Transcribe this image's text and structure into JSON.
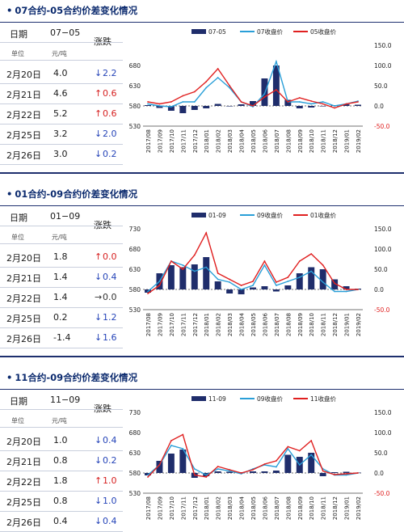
{
  "colors": {
    "title": "#0b2a6e",
    "spread_bar": "#1f2d6b",
    "near_line": "#2a9fd8",
    "far_line": "#e02020",
    "up": "#d62020",
    "down": "#2544b8"
  },
  "panels": [
    {
      "title": "07合约-05合约价差变化情况",
      "table": {
        "hdr_date": "日期",
        "hdr_spread": "07−05",
        "hdr_change": "涨跌",
        "unit_label": "单位",
        "unit_value": "元/吨",
        "rows": [
          {
            "date": "2月20日",
            "value": "4.0",
            "arrow": "↓",
            "change": "2.2",
            "dir": "down"
          },
          {
            "date": "2月21日",
            "value": "4.6",
            "arrow": "↑",
            "change": "0.6",
            "dir": "up"
          },
          {
            "date": "2月22日",
            "value": "5.2",
            "arrow": "↑",
            "change": "0.6",
            "dir": "up"
          },
          {
            "date": "2月25日",
            "value": "3.2",
            "arrow": "↓",
            "change": "2.0",
            "dir": "down"
          },
          {
            "date": "2月26日",
            "value": "3.0",
            "arrow": "↓",
            "change": "0.2",
            "dir": "down"
          }
        ]
      },
      "chart_data": {
        "type": "bar+line",
        "legend": [
          "07-05",
          "07收盘价",
          "05收盘价"
        ],
        "left_ticks": [
          "680",
          "630",
          "580",
          "530"
        ],
        "right_ticks": [
          "150.0",
          "100.0",
          "50.0",
          "0.0",
          "-50.0"
        ],
        "ylim_left": [
          530,
          730
        ],
        "ylim_right": [
          -50,
          150
        ],
        "x": [
          "2017/08",
          "2017/09",
          "2017/10",
          "2017/11",
          "2017/12",
          "2018/01",
          "2018/02",
          "2018/03",
          "2018/04",
          "2018/05",
          "2018/06",
          "2018/07",
          "2018/08",
          "2018/09",
          "2018/10",
          "2018/11",
          "2018/12",
          "2019/01",
          "2019/02"
        ],
        "series": [
          {
            "name": "07-05",
            "kind": "bar",
            "values": [
              2,
              -5,
              -12,
              -18,
              -10,
              -6,
              5,
              0,
              4,
              12,
              68,
              100,
              15,
              -6,
              -4,
              0,
              2,
              4,
              3
            ]
          },
          {
            "name": "07收盘价",
            "kind": "line",
            "values": [
              585,
              580,
              578,
              590,
              590,
              625,
              650,
              625,
              590,
              578,
              610,
              690,
              590,
              590,
              585,
              590,
              580,
              585,
              592
            ]
          },
          {
            "name": "05收盘价",
            "kind": "line",
            "values": [
              590,
              585,
              590,
              605,
              615,
              640,
              672,
              630,
              590,
              580,
              602,
              620,
              590,
              600,
              592,
              585,
              575,
              585,
              590
            ]
          }
        ]
      }
    },
    {
      "title": "01合约-09合约价差变化情况",
      "table": {
        "hdr_date": "日期",
        "hdr_spread": "01−09",
        "hdr_change": "涨跌",
        "unit_label": "单位",
        "unit_value": "元/吨",
        "rows": [
          {
            "date": "2月20日",
            "value": "1.8",
            "arrow": "↑",
            "change": "0.0",
            "dir": "up"
          },
          {
            "date": "2月21日",
            "value": "1.4",
            "arrow": "↓",
            "change": "0.4",
            "dir": "down"
          },
          {
            "date": "2月22日",
            "value": "1.4",
            "arrow": "→",
            "change": "0.0",
            "dir": "flat"
          },
          {
            "date": "2月25日",
            "value": "0.2",
            "arrow": "↓",
            "change": "1.2",
            "dir": "down"
          },
          {
            "date": "2月26日",
            "value": "-1.4",
            "arrow": "↓",
            "change": "1.6",
            "dir": "down"
          }
        ]
      },
      "chart_data": {
        "type": "bar+line",
        "legend": [
          "01-09",
          "09收盘价",
          "01收盘价"
        ],
        "left_ticks": [
          "730",
          "680",
          "630",
          "580",
          "530"
        ],
        "right_ticks": [
          "150.0",
          "100.0",
          "50.0",
          "0.0",
          "-50.0"
        ],
        "ylim_left": [
          530,
          730
        ],
        "ylim_right": [
          -50,
          150
        ],
        "x": [
          "2017/08",
          "2017/09",
          "2017/10",
          "2017/11",
          "2017/12",
          "2018/01",
          "2018/02",
          "2018/03",
          "2018/04",
          "2018/05",
          "2018/06",
          "2018/07",
          "2018/08",
          "2018/09",
          "2018/10",
          "2018/11",
          "2018/12",
          "2019/01",
          "2019/02"
        ],
        "series": [
          {
            "name": "01-09",
            "kind": "bar",
            "values": [
              -8,
              40,
              60,
              55,
              62,
              80,
              20,
              -10,
              -12,
              5,
              8,
              -5,
              10,
              40,
              55,
              50,
              25,
              8,
              2
            ]
          },
          {
            "name": "09收盘价",
            "kind": "line",
            "values": [
              575,
              600,
              650,
              640,
              625,
              635,
              605,
              598,
              580,
              590,
              640,
              590,
              600,
              610,
              625,
              598,
              575,
              575,
              580
            ]
          },
          {
            "name": "01收盘价",
            "kind": "line",
            "values": [
              570,
              590,
              650,
              630,
              665,
              720,
              620,
              605,
              590,
              600,
              650,
              598,
              610,
              650,
              668,
              640,
              595,
              580,
              580
            ]
          }
        ]
      }
    },
    {
      "title": "11合约-09合约价差变化情况",
      "table": {
        "hdr_date": "日期",
        "hdr_spread": "11−09",
        "hdr_change": "涨跌",
        "unit_label": "单位",
        "unit_value": "元/吨",
        "rows": [
          {
            "date": "2月20日",
            "value": "1.0",
            "arrow": "↓",
            "change": "0.4",
            "dir": "down"
          },
          {
            "date": "2月21日",
            "value": "0.8",
            "arrow": "↓",
            "change": "0.2",
            "dir": "down"
          },
          {
            "date": "2月22日",
            "value": "1.8",
            "arrow": "↑",
            "change": "1.0",
            "dir": "up"
          },
          {
            "date": "2月25日",
            "value": "0.8",
            "arrow": "↓",
            "change": "1.0",
            "dir": "down"
          },
          {
            "date": "2月26日",
            "value": "0.4",
            "arrow": "↓",
            "change": "0.4",
            "dir": "down"
          }
        ]
      },
      "chart_data": {
        "type": "bar+line",
        "legend": [
          "11-09",
          "09收盘价",
          "11收盘价"
        ],
        "left_ticks": [
          "730",
          "680",
          "630",
          "580",
          "530"
        ],
        "right_ticks": [
          "150.0",
          "100.0",
          "50.0",
          "0.0",
          "-50.0"
        ],
        "ylim_left": [
          530,
          730
        ],
        "ylim_right": [
          -50,
          150
        ],
        "x": [
          "2017/08",
          "2017/09",
          "2017/10",
          "2017/11",
          "2017/12",
          "2018/01",
          "2018/02",
          "2018/03",
          "2018/04",
          "2018/05",
          "2018/06",
          "2018/07",
          "2018/08",
          "2018/09",
          "2018/10",
          "2018/11",
          "2018/12",
          "2019/01",
          "2019/02"
        ],
        "series": [
          {
            "name": "11-09",
            "kind": "bar",
            "values": [
              -6,
              30,
              48,
              58,
              -12,
              -8,
              4,
              3,
              2,
              4,
              4,
              6,
              45,
              40,
              50,
              -8,
              2,
              3,
              1
            ]
          },
          {
            "name": "09收盘价",
            "kind": "line",
            "values": [
              575,
              600,
              648,
              640,
              590,
              575,
              590,
              585,
              578,
              590,
              600,
              595,
              640,
              600,
              625,
              590,
              575,
              575,
              580
            ]
          },
          {
            "name": "11收盘价",
            "kind": "line",
            "values": [
              570,
              600,
              660,
              675,
              575,
              570,
              596,
              588,
              580,
              588,
              602,
              610,
              645,
              635,
              660,
              585,
              576,
              578,
              580
            ]
          }
        ]
      }
    }
  ]
}
